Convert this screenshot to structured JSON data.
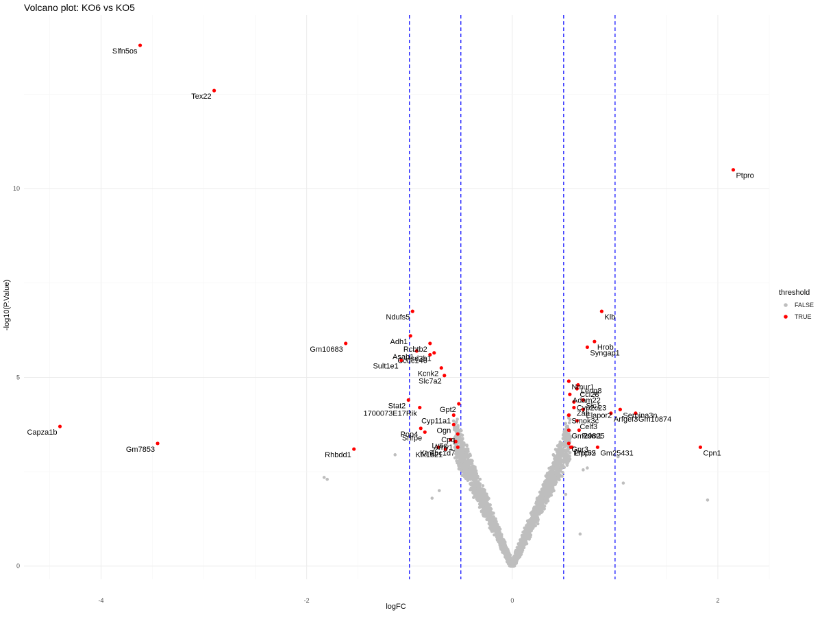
{
  "title": "Volcano plot: KO6 vs KO5",
  "chart_data": {
    "type": "scatter",
    "title": "Volcano plot: KO6 vs KO5",
    "xlabel": "logFC",
    "ylabel": "-log10(P.Value)",
    "xlim": [
      -4.75,
      2.5
    ],
    "ylim": [
      -0.35,
      14.6
    ],
    "xticks": [
      -4,
      -2,
      0,
      2
    ],
    "yticks": [
      0,
      5,
      10
    ],
    "grid": true,
    "legend": {
      "title": "threshold",
      "position": "right",
      "entries": [
        {
          "label": "FALSE",
          "color": "#bebebe"
        },
        {
          "label": "TRUE",
          "color": "#ff0000"
        }
      ]
    },
    "vlines": [
      -1,
      -0.5,
      0.5,
      1
    ],
    "vline_color": "#0000ff",
    "colors": {
      "FALSE": "#bebebe",
      "TRUE": "#ff0000"
    },
    "series": [
      {
        "name": "TRUE",
        "points": [
          {
            "x": -3.62,
            "y": 13.8,
            "label": "Slfn5os"
          },
          {
            "x": -2.9,
            "y": 12.6,
            "label": "Tex22"
          },
          {
            "x": 2.15,
            "y": 10.5,
            "label": "Ptpro"
          },
          {
            "x": -4.4,
            "y": 3.7,
            "label": "Capza1b"
          },
          {
            "x": -3.45,
            "y": 3.25,
            "label": "Gm7853"
          },
          {
            "x": -1.62,
            "y": 5.9,
            "label": "Gm10683"
          },
          {
            "x": -1.54,
            "y": 3.1,
            "label": "Rhbdd1"
          },
          {
            "x": -0.97,
            "y": 6.75,
            "label": "Ndufs5"
          },
          {
            "x": -0.99,
            "y": 6.1,
            "label": "Adh1"
          },
          {
            "x": -0.93,
            "y": 5.7,
            "label": "Asah1"
          },
          {
            "x": -0.8,
            "y": 5.9,
            "label": "Rcbtb2"
          },
          {
            "x": -0.76,
            "y": 5.65,
            "label": "Hsd3b1"
          },
          {
            "x": -0.8,
            "y": 5.6,
            "label": "Ccdc146"
          },
          {
            "x": -1.08,
            "y": 5.45,
            "label": "Sult1e1"
          },
          {
            "x": -0.69,
            "y": 5.25,
            "label": "Kcnk2"
          },
          {
            "x": -0.66,
            "y": 5.05,
            "label": "Slc7a2"
          },
          {
            "x": -1.01,
            "y": 4.4,
            "label": "Stat2"
          },
          {
            "x": -0.9,
            "y": 4.2,
            "label": "1700073E17Rik"
          },
          {
            "x": -0.52,
            "y": 4.3,
            "label": "Gpt2"
          },
          {
            "x": -0.57,
            "y": 4.0,
            "label": "Cyp11a1"
          },
          {
            "x": -0.89,
            "y": 3.65,
            "label": "Pop4"
          },
          {
            "x": -0.85,
            "y": 3.55,
            "label": "Snrpe"
          },
          {
            "x": -0.57,
            "y": 3.75,
            "label": "Ogn"
          },
          {
            "x": -0.53,
            "y": 3.5,
            "label": "Cpq"
          },
          {
            "x": -0.6,
            "y": 3.35,
            "label": "Ly6e"
          },
          {
            "x": -0.55,
            "y": 3.3,
            "label": "Amy1"
          },
          {
            "x": -0.72,
            "y": 3.15,
            "label": "Ktn1"
          },
          {
            "x": -0.65,
            "y": 3.1,
            "label": "Klk1b21"
          },
          {
            "x": -0.53,
            "y": 3.15,
            "label": "Tbc1d7"
          },
          {
            "x": 0.87,
            "y": 6.75,
            "label": "Klb"
          },
          {
            "x": 0.8,
            "y": 5.95,
            "label": "Hrob"
          },
          {
            "x": 0.73,
            "y": 5.8,
            "label": "Syngap1"
          },
          {
            "x": 0.55,
            "y": 4.9,
            "label": "Nmur1"
          },
          {
            "x": 0.64,
            "y": 4.8,
            "label": "Leng8"
          },
          {
            "x": 0.63,
            "y": 4.7,
            "label": "Ccl28"
          },
          {
            "x": 0.56,
            "y": 4.55,
            "label": "Adam22"
          },
          {
            "x": 0.6,
            "y": 4.35,
            "label": "Cyp2c23"
          },
          {
            "x": 0.69,
            "y": 4.4,
            "label": "Slc1"
          },
          {
            "x": 0.6,
            "y": 4.2,
            "label": "Zan"
          },
          {
            "x": 0.69,
            "y": 4.15,
            "label": "Elapor2"
          },
          {
            "x": 1.05,
            "y": 4.15,
            "label": "Serpina3n"
          },
          {
            "x": 0.55,
            "y": 4.0,
            "label": "Smok3c"
          },
          {
            "x": 0.96,
            "y": 4.05,
            "label": "Arfgef3"
          },
          {
            "x": 1.2,
            "y": 4.05,
            "label": "Gm10874"
          },
          {
            "x": 0.63,
            "y": 3.85,
            "label": "Celf3"
          },
          {
            "x": 0.55,
            "y": 3.6,
            "label": "Gm29825"
          },
          {
            "x": 0.65,
            "y": 3.6,
            "label": "Rdm1"
          },
          {
            "x": 0.55,
            "y": 3.25,
            "label": "Gpr3"
          },
          {
            "x": 0.58,
            "y": 3.15,
            "label": "Lrrc55"
          },
          {
            "x": 0.57,
            "y": 3.15,
            "label": "Pfppr2"
          },
          {
            "x": 0.83,
            "y": 3.15,
            "label": "Gm25431"
          },
          {
            "x": 1.83,
            "y": 3.15,
            "label": "Cpn1"
          }
        ]
      },
      {
        "name": "FALSE",
        "points": [
          {
            "x": -1.14,
            "y": 2.95
          },
          {
            "x": -1.83,
            "y": 2.35
          },
          {
            "x": -1.8,
            "y": 2.3
          },
          {
            "x": -0.71,
            "y": 2.0
          },
          {
            "x": -0.78,
            "y": 1.8
          },
          {
            "x": 1.9,
            "y": 1.75
          },
          {
            "x": 1.08,
            "y": 2.2
          },
          {
            "x": 0.66,
            "y": 0.85
          },
          {
            "x": 1.03,
            "y": 2.9
          },
          {
            "x": 0.69,
            "y": 2.55
          },
          {
            "x": 0.73,
            "y": 2.6
          },
          {
            "x": 0.52,
            "y": 1.9
          },
          {
            "x": -0.49,
            "y": 2.6
          },
          {
            "x": 0.46,
            "y": 2.7
          }
        ]
      }
    ]
  }
}
